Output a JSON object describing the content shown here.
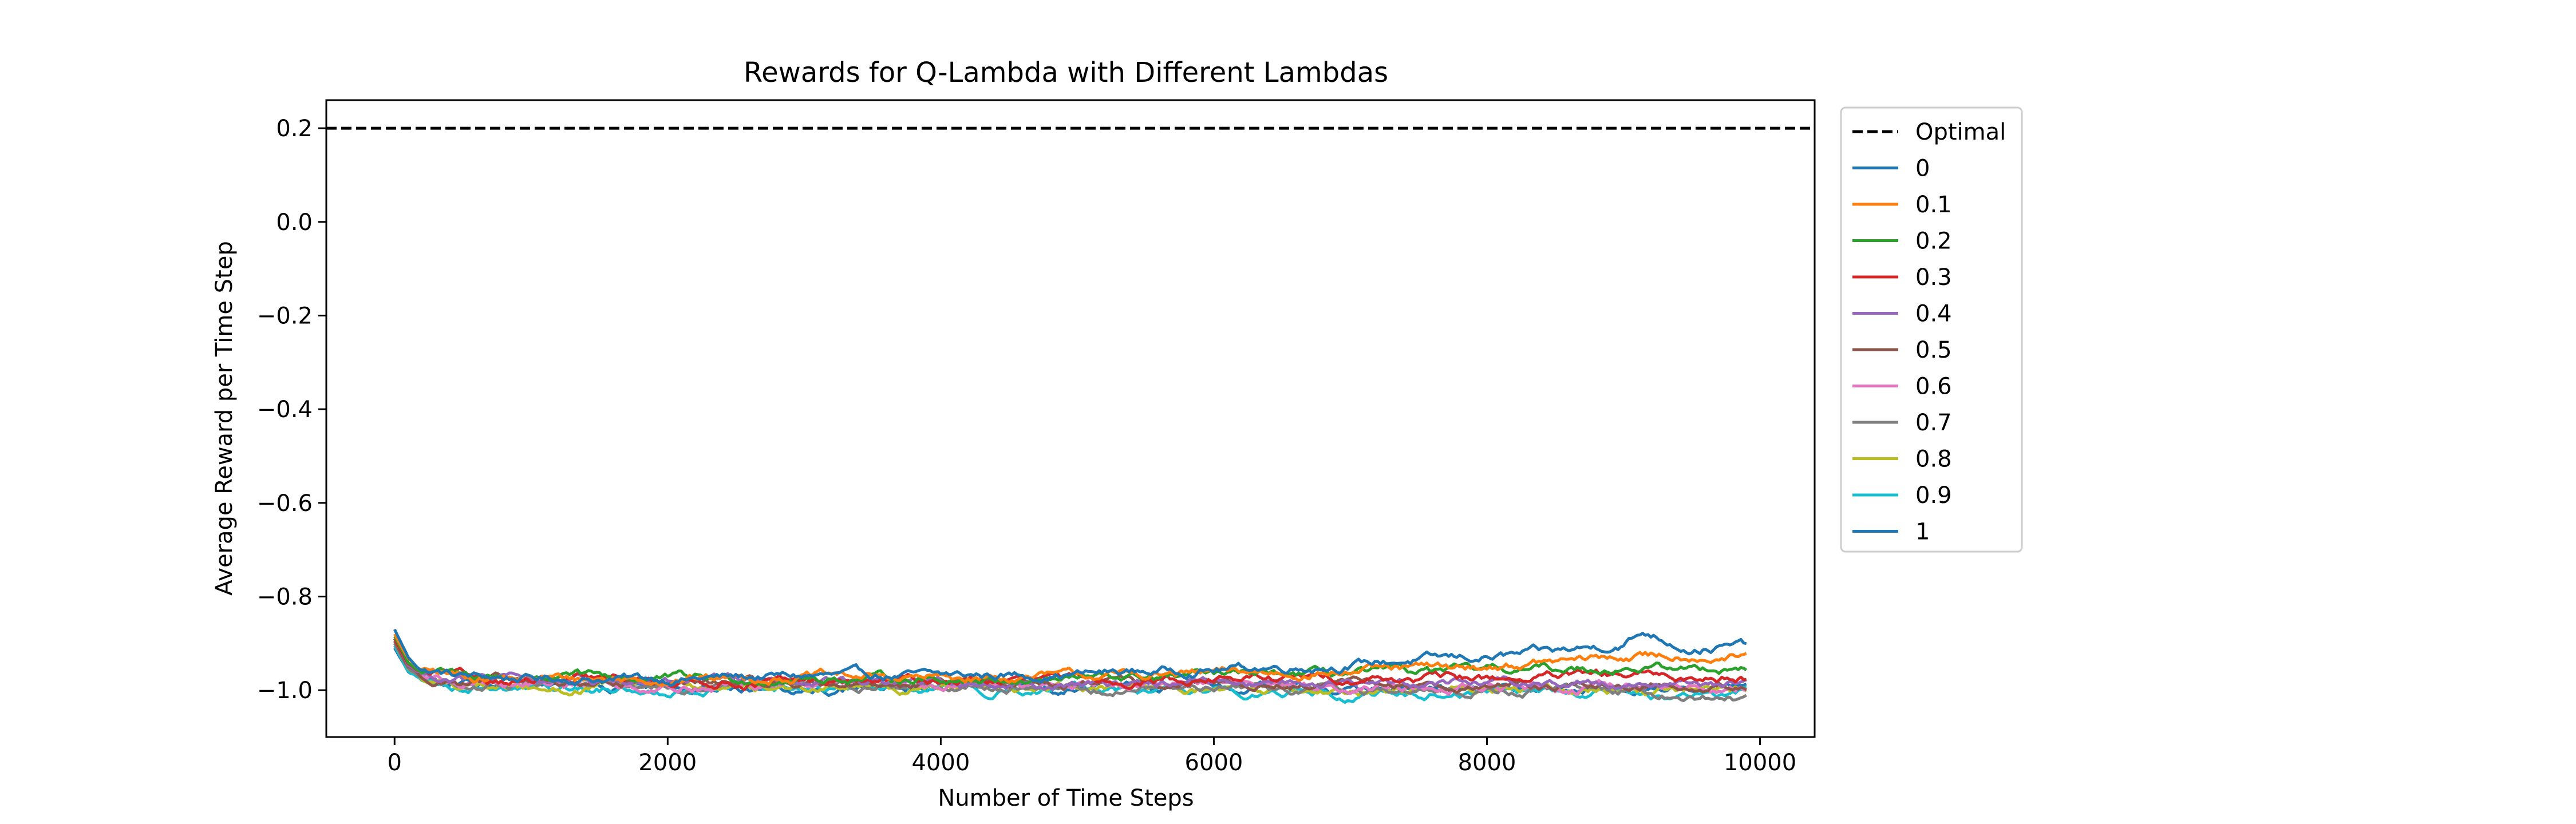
{
  "chart_data": {
    "type": "line",
    "title": "Rewards for Q-Lambda with Different Lambdas",
    "xlabel": "Number of Time Steps",
    "ylabel": "Average Reward per Time Step",
    "xlim": [
      -500,
      10400
    ],
    "ylim": [
      -1.1,
      0.26
    ],
    "xticks": [
      0,
      2000,
      4000,
      6000,
      8000,
      10000
    ],
    "xtick_labels": [
      "0",
      "2000",
      "4000",
      "6000",
      "8000",
      "10000"
    ],
    "yticks": [
      0.2,
      0.0,
      -0.2,
      -0.4,
      -0.6,
      -0.8,
      -1.0
    ],
    "ytick_labels": [
      "0.2",
      "0.0",
      "−0.2",
      "−0.4",
      "−0.6",
      "−0.8",
      "−1.0"
    ],
    "grid": false,
    "legend_position": "outside-right-top",
    "reference_line": {
      "name": "Optimal",
      "y": 0.2,
      "style": "dashed",
      "color": "#000000"
    },
    "series": [
      {
        "name": "0",
        "color": "#1f77b4",
        "points": [
          [
            0,
            -0.87
          ],
          [
            100,
            -0.93
          ],
          [
            200,
            -0.955
          ],
          [
            500,
            -0.97
          ],
          [
            1000,
            -0.975
          ],
          [
            2000,
            -0.975
          ],
          [
            3000,
            -0.97
          ],
          [
            4000,
            -0.97
          ],
          [
            5000,
            -0.965
          ],
          [
            6000,
            -0.955
          ],
          [
            7000,
            -0.945
          ],
          [
            7500,
            -0.935
          ],
          [
            8000,
            -0.93
          ],
          [
            8500,
            -0.92
          ],
          [
            9000,
            -0.9
          ],
          [
            9150,
            -0.875
          ],
          [
            9500,
            -0.91
          ],
          [
            9900,
            -0.905
          ]
        ]
      },
      {
        "name": "0.1",
        "color": "#ff7f0e",
        "points": [
          [
            0,
            -0.88
          ],
          [
            100,
            -0.935
          ],
          [
            200,
            -0.96
          ],
          [
            500,
            -0.97
          ],
          [
            1000,
            -0.975
          ],
          [
            2000,
            -0.975
          ],
          [
            3000,
            -0.97
          ],
          [
            4000,
            -0.975
          ],
          [
            5000,
            -0.97
          ],
          [
            6000,
            -0.965
          ],
          [
            7000,
            -0.96
          ],
          [
            7500,
            -0.955
          ],
          [
            8000,
            -0.95
          ],
          [
            8500,
            -0.94
          ],
          [
            9000,
            -0.93
          ],
          [
            9500,
            -0.925
          ],
          [
            9900,
            -0.93
          ]
        ]
      },
      {
        "name": "0.2",
        "color": "#2ca02c",
        "points": [
          [
            0,
            -0.885
          ],
          [
            100,
            -0.94
          ],
          [
            200,
            -0.96
          ],
          [
            500,
            -0.97
          ],
          [
            1000,
            -0.97
          ],
          [
            2000,
            -0.975
          ],
          [
            3000,
            -0.975
          ],
          [
            4000,
            -0.975
          ],
          [
            5000,
            -0.975
          ],
          [
            6000,
            -0.97
          ],
          [
            7000,
            -0.965
          ],
          [
            8000,
            -0.96
          ],
          [
            8500,
            -0.955
          ],
          [
            9000,
            -0.95
          ],
          [
            9500,
            -0.955
          ],
          [
            9900,
            -0.95
          ]
        ]
      },
      {
        "name": "0.3",
        "color": "#d62728",
        "points": [
          [
            0,
            -0.89
          ],
          [
            100,
            -0.945
          ],
          [
            200,
            -0.965
          ],
          [
            500,
            -0.975
          ],
          [
            1000,
            -0.98
          ],
          [
            2000,
            -0.98
          ],
          [
            3000,
            -0.985
          ],
          [
            4000,
            -0.98
          ],
          [
            5000,
            -0.98
          ],
          [
            6000,
            -0.975
          ],
          [
            7000,
            -0.975
          ],
          [
            8000,
            -0.975
          ],
          [
            9000,
            -0.97
          ],
          [
            9500,
            -0.975
          ],
          [
            9900,
            -0.97
          ]
        ]
      },
      {
        "name": "0.4",
        "color": "#9467bd",
        "points": [
          [
            0,
            -0.89
          ],
          [
            100,
            -0.945
          ],
          [
            200,
            -0.965
          ],
          [
            500,
            -0.975
          ],
          [
            1000,
            -0.98
          ],
          [
            2000,
            -0.985
          ],
          [
            3000,
            -0.98
          ],
          [
            4000,
            -0.985
          ],
          [
            5000,
            -0.985
          ],
          [
            6000,
            -0.98
          ],
          [
            7000,
            -0.985
          ],
          [
            8000,
            -0.98
          ],
          [
            9000,
            -0.985
          ],
          [
            9900,
            -0.985
          ]
        ]
      },
      {
        "name": "0.5",
        "color": "#8c564b",
        "points": [
          [
            0,
            -0.895
          ],
          [
            100,
            -0.95
          ],
          [
            200,
            -0.97
          ],
          [
            500,
            -0.98
          ],
          [
            1000,
            -0.985
          ],
          [
            2000,
            -0.985
          ],
          [
            3000,
            -0.985
          ],
          [
            4000,
            -0.985
          ],
          [
            5000,
            -0.985
          ],
          [
            6000,
            -0.99
          ],
          [
            7000,
            -0.99
          ],
          [
            8000,
            -0.99
          ],
          [
            9000,
            -0.99
          ],
          [
            9900,
            -0.99
          ]
        ]
      },
      {
        "name": "0.6",
        "color": "#e377c2",
        "points": [
          [
            0,
            -0.895
          ],
          [
            100,
            -0.95
          ],
          [
            200,
            -0.97
          ],
          [
            500,
            -0.98
          ],
          [
            1000,
            -0.985
          ],
          [
            2000,
            -0.99
          ],
          [
            3000,
            -0.99
          ],
          [
            4000,
            -0.985
          ],
          [
            5000,
            -0.99
          ],
          [
            6000,
            -0.99
          ],
          [
            7000,
            -0.99
          ],
          [
            8000,
            -0.995
          ],
          [
            9000,
            -0.995
          ],
          [
            9900,
            -0.995
          ]
        ]
      },
      {
        "name": "0.7",
        "color": "#7f7f7f",
        "points": [
          [
            0,
            -0.9
          ],
          [
            100,
            -0.955
          ],
          [
            200,
            -0.975
          ],
          [
            500,
            -0.985
          ],
          [
            1000,
            -0.99
          ],
          [
            2000,
            -0.99
          ],
          [
            3000,
            -0.99
          ],
          [
            4000,
            -0.99
          ],
          [
            5000,
            -0.995
          ],
          [
            6000,
            -0.995
          ],
          [
            7000,
            -1.0
          ],
          [
            8000,
            -1.0
          ],
          [
            9000,
            -1.0
          ],
          [
            9500,
            -1.01
          ],
          [
            9900,
            -1.015
          ]
        ]
      },
      {
        "name": "0.8",
        "color": "#bcbd22",
        "points": [
          [
            0,
            -0.9
          ],
          [
            100,
            -0.955
          ],
          [
            200,
            -0.975
          ],
          [
            500,
            -0.99
          ],
          [
            1000,
            -0.995
          ],
          [
            2000,
            -0.995
          ],
          [
            3000,
            -0.995
          ],
          [
            4000,
            -0.995
          ],
          [
            5000,
            -0.995
          ],
          [
            6000,
            -1.0
          ],
          [
            7000,
            -1.0
          ],
          [
            8000,
            -1.0
          ],
          [
            9000,
            -1.0
          ],
          [
            9900,
            -1.0
          ]
        ]
      },
      {
        "name": "0.9",
        "color": "#17becf",
        "points": [
          [
            0,
            -0.905
          ],
          [
            100,
            -0.96
          ],
          [
            200,
            -0.98
          ],
          [
            500,
            -0.99
          ],
          [
            1000,
            -0.995
          ],
          [
            2000,
            -1.0
          ],
          [
            3000,
            -1.0
          ],
          [
            4000,
            -1.0
          ],
          [
            5000,
            -1.0
          ],
          [
            6000,
            -1.005
          ],
          [
            7000,
            -1.005
          ],
          [
            8000,
            -1.005
          ],
          [
            9000,
            -1.005
          ],
          [
            9300,
            -1.02
          ],
          [
            9900,
            -1.005
          ]
        ]
      },
      {
        "name": "1",
        "color": "#1f77b4",
        "points": [
          [
            0,
            -0.91
          ],
          [
            100,
            -0.96
          ],
          [
            200,
            -0.98
          ],
          [
            500,
            -0.99
          ],
          [
            1000,
            -0.995
          ],
          [
            2000,
            -0.995
          ],
          [
            3000,
            -0.995
          ],
          [
            4000,
            -0.995
          ],
          [
            5000,
            -0.995
          ],
          [
            6000,
            -0.995
          ],
          [
            7000,
            -1.0
          ],
          [
            8000,
            -1.0
          ],
          [
            9000,
            -1.0
          ],
          [
            9900,
            -1.0
          ]
        ]
      }
    ]
  }
}
